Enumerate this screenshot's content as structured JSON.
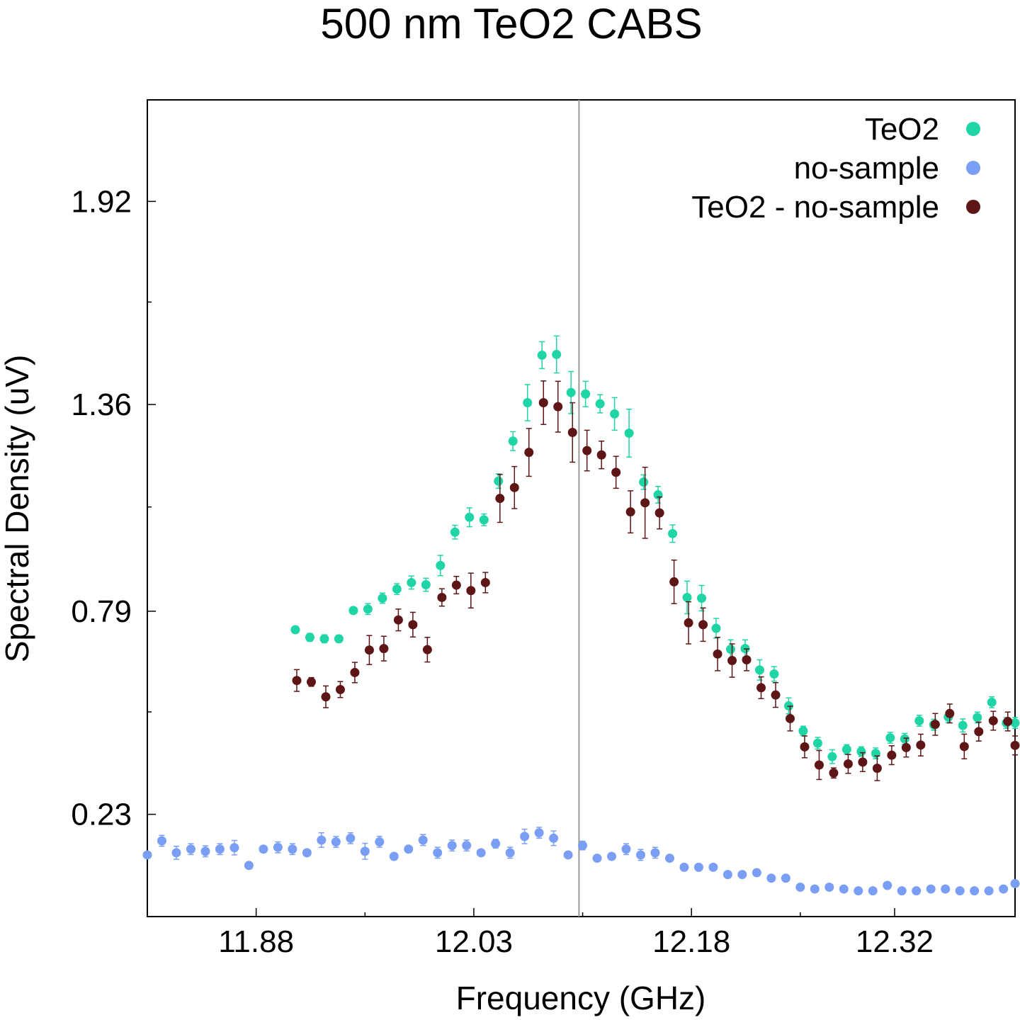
{
  "chart_data": {
    "type": "scatter",
    "title": "500 nm TeO2 CABS",
    "xlabel": "Frequency (GHz)",
    "ylabel": "Spectral Density (uV)",
    "xlim": [
      11.805,
      12.403
    ],
    "ylim": [
      -0.052,
      2.2
    ],
    "xticks": [
      11.88,
      12.03,
      12.18,
      12.32
    ],
    "xtick_labels": [
      "11.88",
      "12.03",
      "12.18",
      "12.32"
    ],
    "yticks": [
      0.23,
      0.79,
      1.36,
      1.92
    ],
    "ytick_labels": [
      "0.23",
      "0.79",
      "1.36",
      "1.92"
    ],
    "x_minor_step": 0.075,
    "y_minor_step": 0.2825,
    "vline_x": 12.1025,
    "legend_position": "top-right",
    "grid": false,
    "series": [
      {
        "name": "TeO2",
        "color": "#1fd4a5",
        "x": [
          11.907,
          11.917,
          11.927,
          11.937,
          11.947,
          11.957,
          11.967,
          11.977,
          11.987,
          11.997,
          12.007,
          12.017,
          12.027,
          12.037,
          12.047,
          12.057,
          12.067,
          12.077,
          12.087,
          12.097,
          12.107,
          12.117,
          12.127,
          12.137,
          12.147,
          12.157,
          12.167,
          12.177,
          12.187,
          12.197,
          12.207,
          12.217,
          12.227,
          12.237,
          12.247,
          12.257,
          12.267,
          12.277,
          12.287,
          12.297,
          12.307,
          12.317,
          12.327,
          12.337,
          12.347,
          12.357,
          12.367,
          12.377,
          12.387,
          12.397,
          12.403
        ],
        "y": [
          0.739,
          0.718,
          0.714,
          0.714,
          0.792,
          0.796,
          0.826,
          0.851,
          0.869,
          0.863,
          0.916,
          1.008,
          1.049,
          1.042,
          1.149,
          1.259,
          1.365,
          1.496,
          1.498,
          1.393,
          1.389,
          1.362,
          1.334,
          1.281,
          1.146,
          1.111,
          1.004,
          0.828,
          0.826,
          0.743,
          0.685,
          0.687,
          0.628,
          0.617,
          0.529,
          0.46,
          0.426,
          0.389,
          0.409,
          0.403,
          0.398,
          0.441,
          0.438,
          0.488,
          0.477,
          0.498,
          0.475,
          0.497,
          0.539,
          0.482,
          0.482
        ],
        "err": [
          0.008,
          0.011,
          0.011,
          0.01,
          0.009,
          0.015,
          0.014,
          0.015,
          0.018,
          0.018,
          0.028,
          0.019,
          0.026,
          0.016,
          0.02,
          0.026,
          0.05,
          0.037,
          0.051,
          0.058,
          0.035,
          0.025,
          0.045,
          0.066,
          0.02,
          0.023,
          0.024,
          0.045,
          0.035,
          0.027,
          0.026,
          0.024,
          0.028,
          0.02,
          0.022,
          0.013,
          0.016,
          0.019,
          0.013,
          0.013,
          0.015,
          0.015,
          0.015,
          0.015,
          0.015,
          0.015,
          0.018,
          0.015,
          0.015,
          0.015,
          0.015
        ]
      },
      {
        "name": "no-sample",
        "color": "#7b9ef5",
        "x": [
          11.805,
          11.815,
          11.825,
          11.835,
          11.845,
          11.855,
          11.865,
          11.875,
          11.885,
          11.895,
          11.905,
          11.915,
          11.925,
          11.935,
          11.945,
          11.955,
          11.965,
          11.975,
          11.985,
          11.995,
          12.005,
          12.015,
          12.025,
          12.035,
          12.045,
          12.055,
          12.065,
          12.075,
          12.085,
          12.095,
          12.105,
          12.115,
          12.125,
          12.135,
          12.145,
          12.155,
          12.165,
          12.175,
          12.185,
          12.195,
          12.205,
          12.215,
          12.225,
          12.235,
          12.245,
          12.255,
          12.265,
          12.275,
          12.285,
          12.295,
          12.305,
          12.315,
          12.325,
          12.335,
          12.345,
          12.355,
          12.365,
          12.375,
          12.385,
          12.395,
          12.403
        ],
        "y": [
          0.118,
          0.157,
          0.124,
          0.134,
          0.128,
          0.134,
          0.138,
          0.089,
          0.134,
          0.139,
          0.134,
          0.124,
          0.159,
          0.154,
          0.164,
          0.128,
          0.154,
          0.114,
          0.134,
          0.159,
          0.124,
          0.144,
          0.144,
          0.124,
          0.149,
          0.124,
          0.169,
          0.179,
          0.164,
          0.118,
          0.144,
          0.109,
          0.114,
          0.134,
          0.118,
          0.124,
          0.109,
          0.084,
          0.084,
          0.084,
          0.064,
          0.064,
          0.069,
          0.054,
          0.054,
          0.029,
          0.024,
          0.029,
          0.024,
          0.019,
          0.019,
          0.034,
          0.019,
          0.019,
          0.024,
          0.024,
          0.019,
          0.019,
          0.019,
          0.024,
          0.039
        ],
        "err": [
          0.008,
          0.015,
          0.018,
          0.015,
          0.015,
          0.015,
          0.02,
          0.008,
          0.008,
          0.015,
          0.015,
          0.008,
          0.02,
          0.015,
          0.015,
          0.022,
          0.015,
          0.008,
          0.008,
          0.015,
          0.015,
          0.015,
          0.015,
          0.008,
          0.012,
          0.015,
          0.02,
          0.015,
          0.02,
          0.008,
          0.012,
          0.008,
          0.008,
          0.015,
          0.015,
          0.015,
          0.008,
          0.008,
          0.008,
          0.008,
          0.008,
          0.008,
          0.008,
          0.008,
          0.008,
          0.008,
          0.008,
          0.008,
          0.008,
          0.008,
          0.008,
          0.008,
          0.008,
          0.008,
          0.008,
          0.008,
          0.008,
          0.008,
          0.008,
          0.008,
          0.008
        ]
      },
      {
        "name": "TeO2 - no-sample",
        "color": "#5e1515",
        "x": [
          11.908,
          11.918,
          11.928,
          11.938,
          11.948,
          11.958,
          11.968,
          11.978,
          11.988,
          11.998,
          12.008,
          12.018,
          12.028,
          12.038,
          12.048,
          12.058,
          12.068,
          12.078,
          12.088,
          12.098,
          12.108,
          12.118,
          12.128,
          12.138,
          12.148,
          12.158,
          12.168,
          12.178,
          12.188,
          12.198,
          12.208,
          12.218,
          12.228,
          12.238,
          12.248,
          12.258,
          12.268,
          12.278,
          12.288,
          12.298,
          12.308,
          12.318,
          12.328,
          12.338,
          12.348,
          12.358,
          12.368,
          12.378,
          12.388,
          12.398,
          12.403
        ],
        "y": [
          0.599,
          0.595,
          0.554,
          0.574,
          0.621,
          0.683,
          0.687,
          0.766,
          0.753,
          0.684,
          0.828,
          0.862,
          0.847,
          0.869,
          1.101,
          1.131,
          1.228,
          1.365,
          1.354,
          1.283,
          1.233,
          1.221,
          1.173,
          1.064,
          1.089,
          1.061,
          0.871,
          0.758,
          0.753,
          0.672,
          0.654,
          0.656,
          0.579,
          0.559,
          0.494,
          0.416,
          0.366,
          0.344,
          0.369,
          0.374,
          0.357,
          0.393,
          0.414,
          0.421,
          0.478,
          0.508,
          0.417,
          0.458,
          0.488,
          0.486,
          0.42
        ],
        "err": [
          0.03,
          0.012,
          0.03,
          0.022,
          0.028,
          0.04,
          0.034,
          0.03,
          0.034,
          0.034,
          0.024,
          0.024,
          0.048,
          0.028,
          0.066,
          0.058,
          0.066,
          0.06,
          0.07,
          0.082,
          0.056,
          0.038,
          0.044,
          0.058,
          0.098,
          0.044,
          0.06,
          0.058,
          0.046,
          0.046,
          0.046,
          0.03,
          0.03,
          0.034,
          0.034,
          0.03,
          0.04,
          0.014,
          0.026,
          0.026,
          0.034,
          0.026,
          0.026,
          0.03,
          0.03,
          0.026,
          0.034,
          0.026,
          0.026,
          0.026,
          0.026
        ]
      }
    ]
  }
}
